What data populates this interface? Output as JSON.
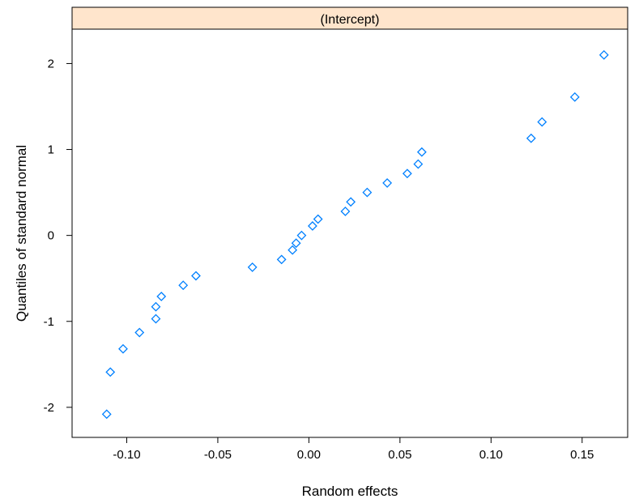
{
  "colors": {
    "point": "#0080ff",
    "strip_fill": "#ffe5cc",
    "axis": "#000000",
    "background": "#ffffff"
  },
  "chart_data": {
    "type": "scatter",
    "panel_title": "(Intercept)",
    "xlabel": "Random effects",
    "ylabel": "Quantiles of standard normal",
    "xlim": [
      -0.13,
      0.175
    ],
    "ylim": [
      -2.35,
      2.4
    ],
    "x_ticks": [
      -0.1,
      -0.05,
      0.0,
      0.05,
      0.1,
      0.15
    ],
    "x_tick_labels": [
      "-0.10",
      "-0.05",
      "0.00",
      "0.05",
      "0.10",
      "0.15"
    ],
    "y_ticks": [
      -2,
      -1,
      0,
      1,
      2
    ],
    "y_tick_labels": [
      "-2",
      "-1",
      "0",
      "1",
      "2"
    ],
    "grid": false,
    "marker": "diamond-open",
    "points": [
      {
        "x": -0.111,
        "y": -2.08
      },
      {
        "x": -0.109,
        "y": -1.59
      },
      {
        "x": -0.102,
        "y": -1.32
      },
      {
        "x": -0.093,
        "y": -1.13
      },
      {
        "x": -0.084,
        "y": -0.97
      },
      {
        "x": -0.084,
        "y": -0.83
      },
      {
        "x": -0.081,
        "y": -0.71
      },
      {
        "x": -0.069,
        "y": -0.58
      },
      {
        "x": -0.062,
        "y": -0.47
      },
      {
        "x": -0.031,
        "y": -0.37
      },
      {
        "x": -0.015,
        "y": -0.28
      },
      {
        "x": -0.009,
        "y": -0.17
      },
      {
        "x": -0.007,
        "y": -0.09
      },
      {
        "x": -0.004,
        "y": 0.0
      },
      {
        "x": 0.002,
        "y": 0.11
      },
      {
        "x": 0.005,
        "y": 0.19
      },
      {
        "x": 0.02,
        "y": 0.28
      },
      {
        "x": 0.023,
        "y": 0.39
      },
      {
        "x": 0.032,
        "y": 0.5
      },
      {
        "x": 0.043,
        "y": 0.61
      },
      {
        "x": 0.054,
        "y": 0.72
      },
      {
        "x": 0.06,
        "y": 0.83
      },
      {
        "x": 0.062,
        "y": 0.97
      },
      {
        "x": 0.122,
        "y": 1.13
      },
      {
        "x": 0.128,
        "y": 1.32
      },
      {
        "x": 0.146,
        "y": 1.61
      },
      {
        "x": 0.162,
        "y": 2.1
      }
    ]
  }
}
